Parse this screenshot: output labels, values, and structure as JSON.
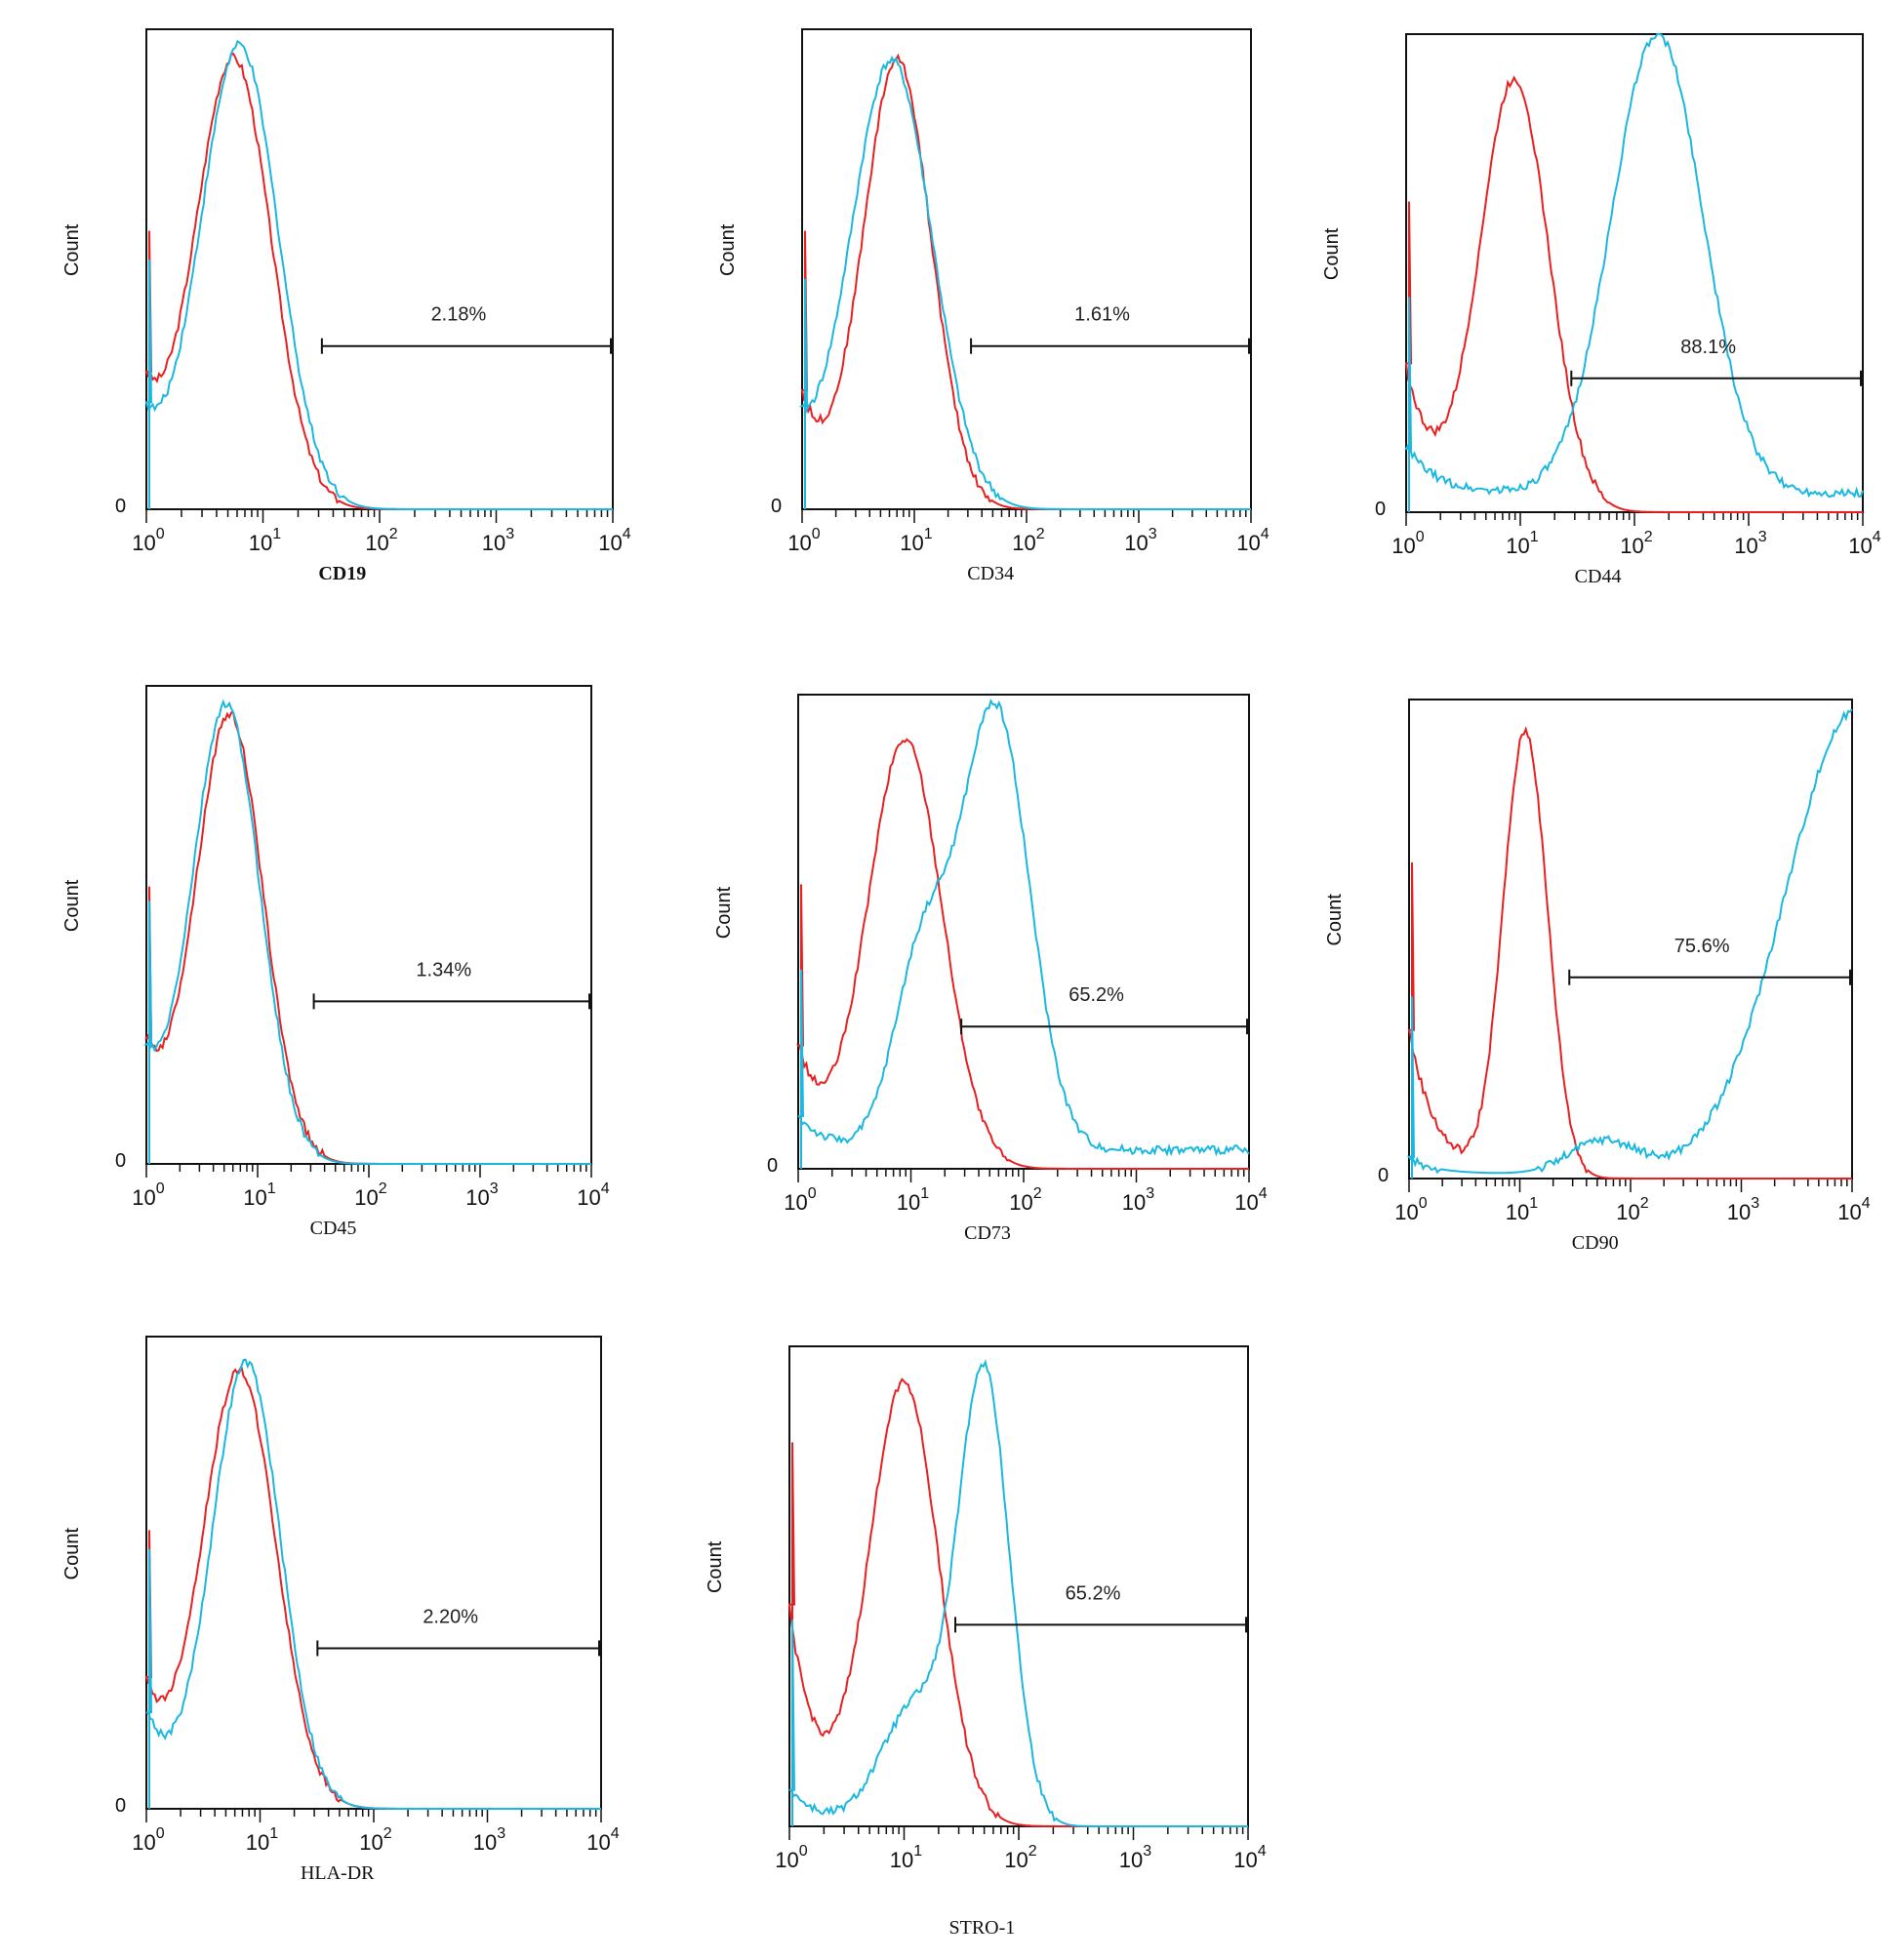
{
  "figure": {
    "panel_count": 8
  },
  "chart_data": [
    {
      "type": "line",
      "marker": "CD19",
      "ylabel": "Count",
      "y_zero_label": "0",
      "xscale": "log",
      "xlim": [
        1,
        10000
      ],
      "x_tick_labels": [
        {
          "base": "10",
          "exp": "0"
        },
        {
          "base": "10",
          "exp": "1"
        },
        {
          "base": "10",
          "exp": "2"
        },
        {
          "base": "10",
          "exp": "3"
        },
        {
          "base": "10",
          "exp": "4"
        }
      ],
      "gate": {
        "label": "2.18%",
        "x_start": 32,
        "x_end": 10000
      },
      "series": [
        {
          "color": "#e82020",
          "role": "control",
          "peaks": [
            {
              "center_log": 0.75,
              "width_log": 0.32,
              "height": 0.93
            }
          ],
          "low_start": 0.23,
          "floor": 0.0
        },
        {
          "color": "#1ab8e0",
          "role": "marker",
          "peaks": [
            {
              "center_log": 0.8,
              "width_log": 0.33,
              "height": 0.96
            }
          ],
          "low_start": 0.17,
          "floor": 0.0
        }
      ]
    },
    {
      "type": "line",
      "marker": "CD34",
      "ylabel": "Count",
      "y_zero_label": "0",
      "xscale": "log",
      "xlim": [
        1,
        10000
      ],
      "x_tick_labels": [
        {
          "base": "10",
          "exp": "0"
        },
        {
          "base": "10",
          "exp": "1"
        },
        {
          "base": "10",
          "exp": "2"
        },
        {
          "base": "10",
          "exp": "3"
        },
        {
          "base": "10",
          "exp": "4"
        }
      ],
      "gate": {
        "label": "1.61%",
        "x_start": 32,
        "x_end": 10000
      },
      "series": [
        {
          "color": "#e82020",
          "role": "control",
          "peaks": [
            {
              "center_log": 0.85,
              "width_log": 0.3,
              "height": 0.93
            }
          ],
          "low_start": 0.23,
          "floor": 0.0
        },
        {
          "color": "#1ab8e0",
          "role": "marker",
          "peaks": [
            {
              "center_log": 0.8,
              "width_log": 0.36,
              "height": 0.93
            }
          ],
          "low_start": 0.13,
          "floor": 0.0
        }
      ]
    },
    {
      "type": "line",
      "marker": "CD44",
      "ylabel": "Count",
      "y_zero_label": "0",
      "xscale": "log",
      "xlim": [
        1,
        10000
      ],
      "x_tick_labels": [
        {
          "base": "10",
          "exp": "0"
        },
        {
          "base": "10",
          "exp": "1"
        },
        {
          "base": "10",
          "exp": "2"
        },
        {
          "base": "10",
          "exp": "3"
        },
        {
          "base": "10",
          "exp": "4"
        }
      ],
      "gate": {
        "label": "88.1%",
        "x_start": 28,
        "x_end": 10000
      },
      "series": [
        {
          "color": "#e82020",
          "role": "control",
          "peaks": [
            {
              "center_log": 0.95,
              "width_log": 0.3,
              "height": 0.9
            }
          ],
          "low_start": 0.3,
          "floor": 0.0
        },
        {
          "color": "#1ab8e0",
          "role": "marker",
          "peaks": [
            {
              "center_log": 2.2,
              "width_log": 0.4,
              "height": 0.96
            }
          ],
          "low_start": 0.1,
          "floor": 0.04
        }
      ]
    },
    {
      "type": "line",
      "marker": "CD45",
      "ylabel": "Count",
      "y_zero_label": "0",
      "xscale": "log",
      "xlim": [
        1,
        10000
      ],
      "x_tick_labels": [
        {
          "base": "10",
          "exp": "0"
        },
        {
          "base": "10",
          "exp": "1"
        },
        {
          "base": "10",
          "exp": "2"
        },
        {
          "base": "10",
          "exp": "3"
        },
        {
          "base": "10",
          "exp": "4"
        }
      ],
      "gate": {
        "label": "1.34%",
        "x_start": 32,
        "x_end": 10000
      },
      "series": [
        {
          "color": "#e82020",
          "role": "control",
          "peaks": [
            {
              "center_log": 0.75,
              "width_log": 0.3,
              "height": 0.93
            }
          ],
          "low_start": 0.23,
          "floor": 0.0
        },
        {
          "color": "#1ab8e0",
          "role": "marker",
          "peaks": [
            {
              "center_log": 0.72,
              "width_log": 0.3,
              "height": 0.95
            }
          ],
          "low_start": 0.2,
          "floor": 0.0
        }
      ]
    },
    {
      "type": "line",
      "marker": "CD73",
      "ylabel": "Count",
      "y_zero_label": "0",
      "xscale": "log",
      "xlim": [
        1,
        10000
      ],
      "x_tick_labels": [
        {
          "base": "10",
          "exp": "0"
        },
        {
          "base": "10",
          "exp": "1"
        },
        {
          "base": "10",
          "exp": "2"
        },
        {
          "base": "10",
          "exp": "3"
        },
        {
          "base": "10",
          "exp": "4"
        }
      ],
      "gate": {
        "label": "65.2%",
        "x_start": 28,
        "x_end": 10000
      },
      "series": [
        {
          "color": "#e82020",
          "role": "control",
          "peaks": [
            {
              "center_log": 0.95,
              "width_log": 0.33,
              "height": 0.9
            }
          ],
          "low_start": 0.25,
          "floor": 0.0
        },
        {
          "color": "#1ab8e0",
          "role": "marker",
          "peaks": [
            {
              "center_log": 1.1,
              "width_log": 0.25,
              "height": 0.4
            },
            {
              "center_log": 1.75,
              "width_log": 0.3,
              "height": 0.93
            }
          ],
          "low_start": 0.07,
          "floor": 0.04
        }
      ]
    },
    {
      "type": "line",
      "marker": "CD90",
      "ylabel": "Count",
      "y_zero_label": "0",
      "xscale": "log",
      "xlim": [
        1,
        10000
      ],
      "x_tick_labels": [
        {
          "base": "10",
          "exp": "0"
        },
        {
          "base": "10",
          "exp": "1"
        },
        {
          "base": "10",
          "exp": "2"
        },
        {
          "base": "10",
          "exp": "3"
        },
        {
          "base": "10",
          "exp": "4"
        }
      ],
      "gate": {
        "label": "75.6%",
        "x_start": 28,
        "x_end": 10000
      },
      "series": [
        {
          "color": "#e82020",
          "role": "control",
          "peaks": [
            {
              "center_log": 1.05,
              "width_log": 0.2,
              "height": 0.93
            }
          ],
          "low_start": 0.31,
          "floor": 0.0
        },
        {
          "color": "#1ab8e0",
          "role": "marker",
          "peaks": [
            {
              "center_log": 1.75,
              "width_log": 0.3,
              "height": 0.07
            },
            {
              "center_log": 4.05,
              "width_log": 0.65,
              "height": 0.97
            }
          ],
          "low_start": 0.03,
          "floor": 0.01
        }
      ]
    },
    {
      "type": "line",
      "marker": "HLA-DR",
      "ylabel": "Count",
      "y_zero_label": "0",
      "xscale": "log",
      "xlim": [
        1,
        10000
      ],
      "x_tick_labels": [
        {
          "base": "10",
          "exp": "0"
        },
        {
          "base": "10",
          "exp": "1"
        },
        {
          "base": "10",
          "exp": "2"
        },
        {
          "base": "10",
          "exp": "3"
        },
        {
          "base": "10",
          "exp": "4"
        }
      ],
      "gate": {
        "label": "2.20%",
        "x_start": 32,
        "x_end": 10000
      },
      "series": [
        {
          "color": "#e82020",
          "role": "control",
          "peaks": [
            {
              "center_log": 0.82,
              "width_log": 0.32,
              "height": 0.92
            }
          ],
          "low_start": 0.24,
          "floor": 0.0
        },
        {
          "color": "#1ab8e0",
          "role": "marker",
          "peaks": [
            {
              "center_log": 0.88,
              "width_log": 0.3,
              "height": 0.94
            }
          ],
          "low_start": 0.2,
          "floor": 0.0
        }
      ]
    },
    {
      "type": "line",
      "marker": "STRO-1",
      "ylabel": "Count",
      "y_zero_label": "",
      "xscale": "log",
      "xlim": [
        1,
        10000
      ],
      "x_tick_labels": [
        {
          "base": "10",
          "exp": "0"
        },
        {
          "base": "10",
          "exp": "1"
        },
        {
          "base": "10",
          "exp": "2"
        },
        {
          "base": "10",
          "exp": "3"
        },
        {
          "base": "10",
          "exp": "4"
        }
      ],
      "gate": {
        "label": "65.2%",
        "x_start": 28,
        "x_end": 10000
      },
      "series": [
        {
          "color": "#e82020",
          "role": "control",
          "peaks": [
            {
              "center_log": 1.0,
              "width_log": 0.3,
              "height": 0.92
            }
          ],
          "low_start": 0.45,
          "floor": 0.0
        },
        {
          "color": "#1ab8e0",
          "role": "marker",
          "peaks": [
            {
              "center_log": 1.1,
              "width_log": 0.3,
              "height": 0.25
            },
            {
              "center_log": 1.7,
              "width_log": 0.22,
              "height": 0.93
            }
          ],
          "low_start": 0.08,
          "floor": 0.0
        }
      ]
    }
  ]
}
